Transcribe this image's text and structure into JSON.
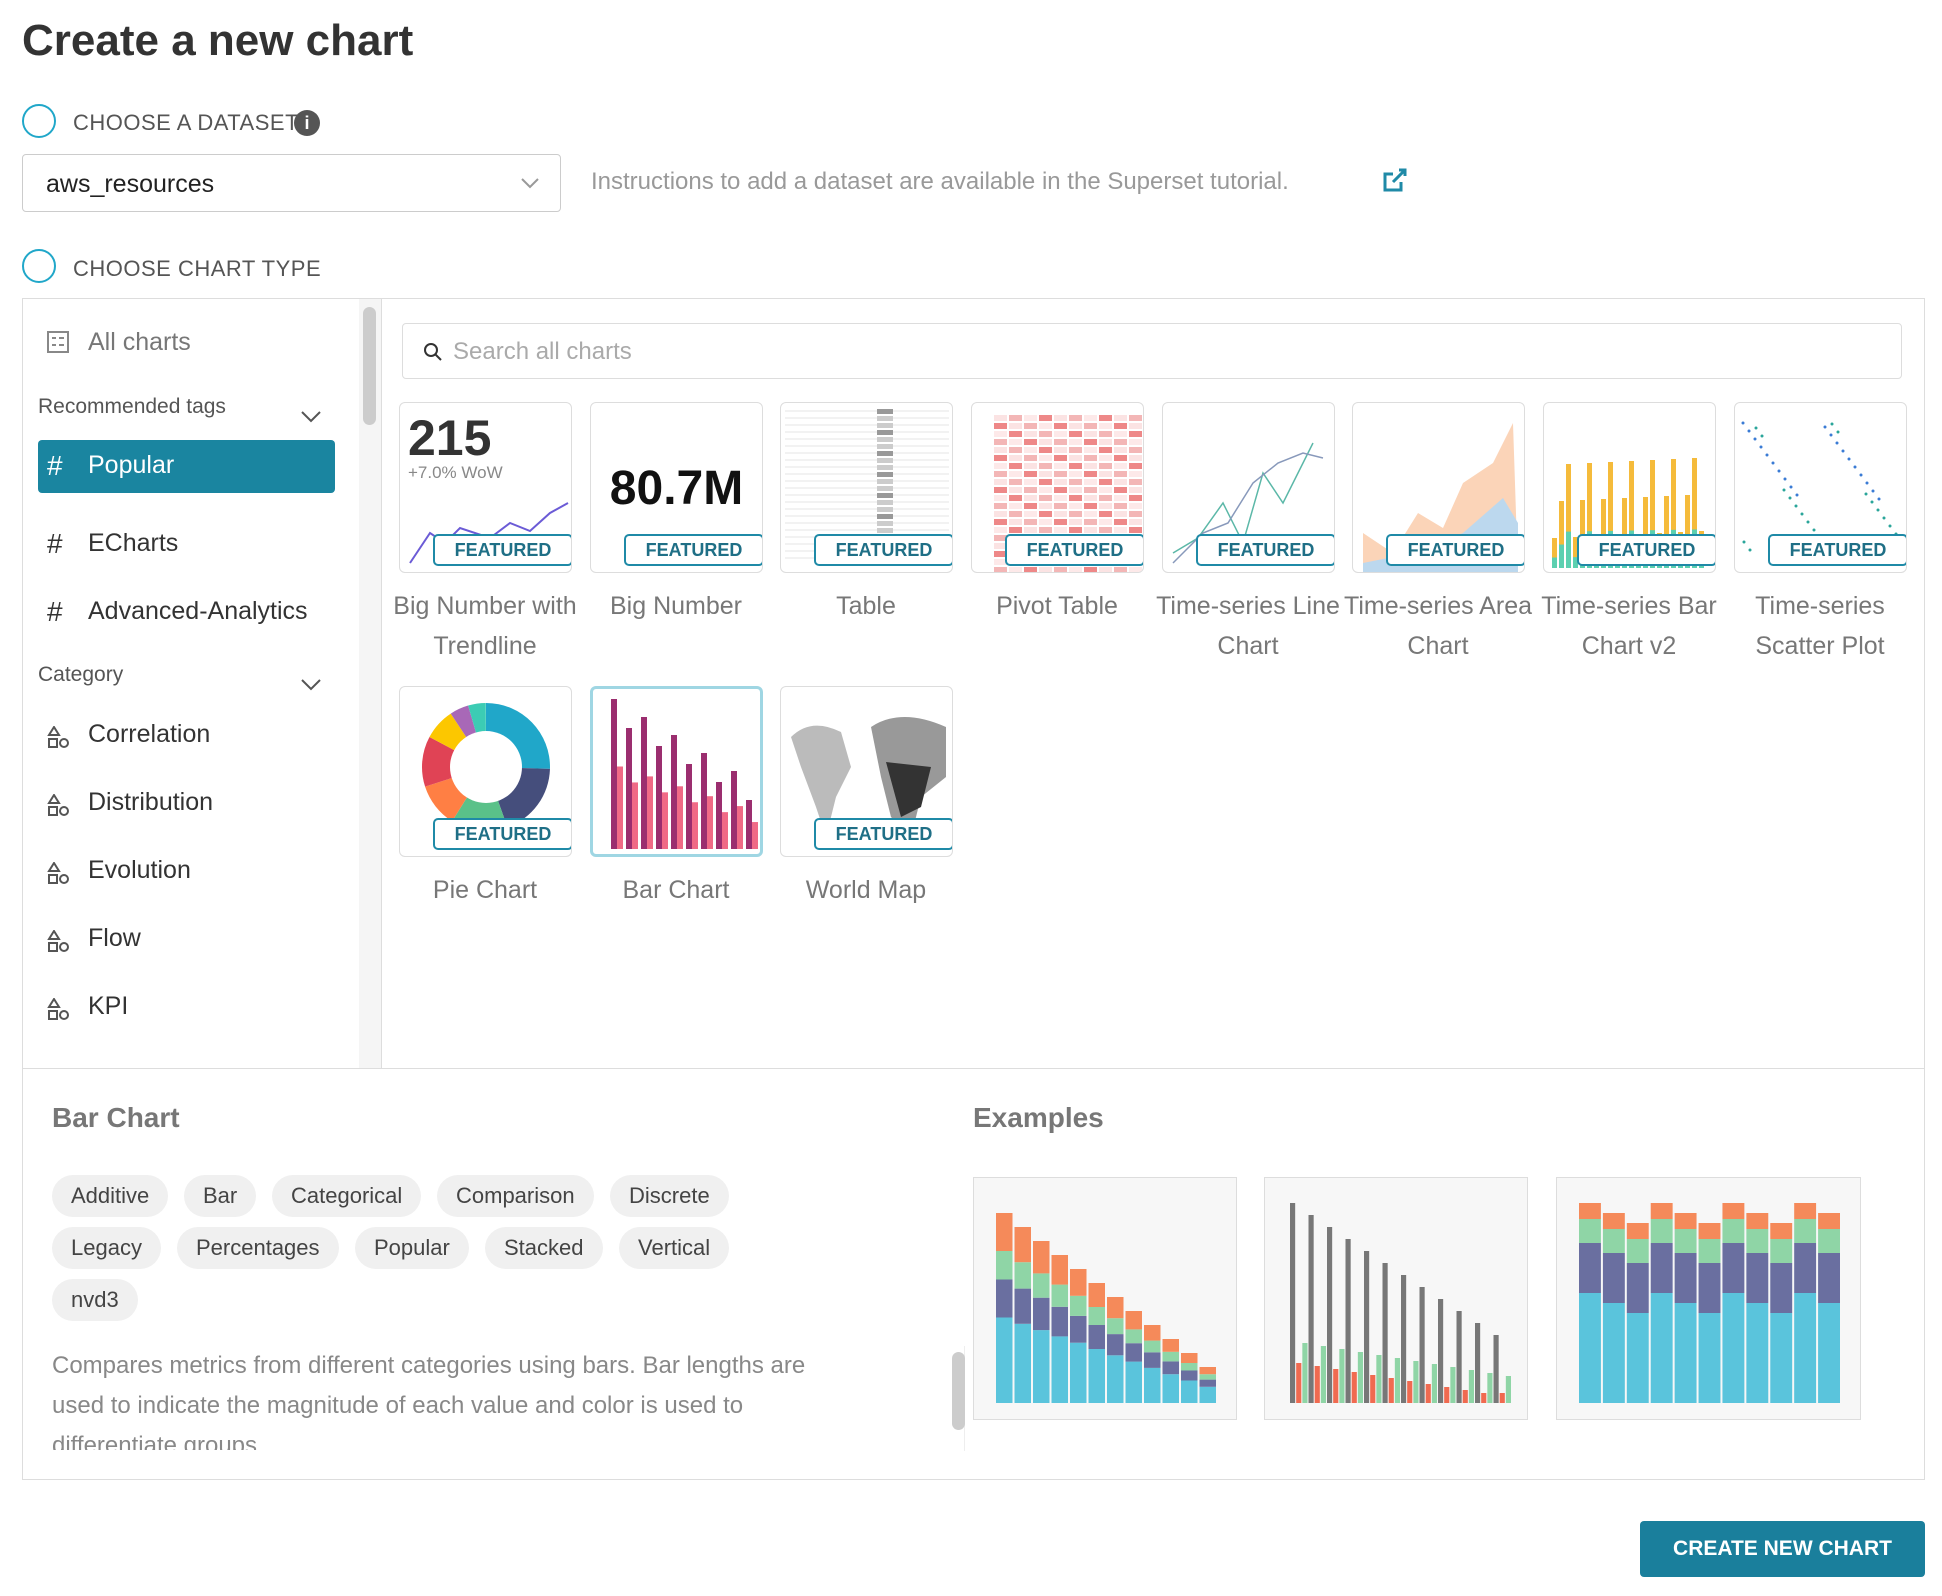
{
  "header": {
    "title": "Create a new chart"
  },
  "steps": [
    {
      "label": "CHOOSE A DATASET"
    },
    {
      "label": "CHOOSE CHART TYPE"
    }
  ],
  "dataset": {
    "selected": "aws_resources",
    "instructions": "Instructions to add a dataset are available in the Superset tutorial."
  },
  "sidebar": {
    "all": "All charts",
    "recommended_heading": "Recommended tags",
    "tags": [
      "Popular",
      "ECharts",
      "Advanced-Analytics"
    ],
    "category_heading": "Category",
    "categories": [
      "Correlation",
      "Distribution",
      "Evolution",
      "Flow",
      "KPI"
    ]
  },
  "search_placeholder": "Search all charts",
  "charts": [
    {
      "name": "Big Number with Trendline",
      "badge": "FEATURED",
      "thumb_texts": [
        "215",
        "+7.0% WoW"
      ]
    },
    {
      "name": "Big Number",
      "badge": "FEATURED",
      "thumb_texts": [
        "80.7M"
      ]
    },
    {
      "name": "Table",
      "badge": "FEATURED"
    },
    {
      "name": "Pivot Table",
      "badge": "FEATURED"
    },
    {
      "name": "Time-series Line Chart",
      "badge": "FEATURED"
    },
    {
      "name": "Time-series Area Chart",
      "badge": "FEATURED"
    },
    {
      "name": "Time-series Bar Chart v2",
      "badge": "FEATURED"
    },
    {
      "name": "Time-series Scatter Plot",
      "badge": "FEATURED"
    },
    {
      "name": "Pie Chart",
      "badge": "FEATURED"
    },
    {
      "name": "Bar Chart"
    },
    {
      "name": "World Map",
      "badge": "FEATURED"
    }
  ],
  "detail": {
    "title": "Bar Chart",
    "tags": [
      "Additive",
      "Bar",
      "Categorical",
      "Comparison",
      "Discrete",
      "Legacy",
      "Percentages",
      "Popular",
      "Stacked",
      "Vertical",
      "nvd3"
    ],
    "description": "Compares metrics from different categories using bars. Bar lengths are used to indicate the magnitude of each value and color is used to differentiate groups."
  },
  "examples_heading": "Examples",
  "button": "CREATE NEW CHART"
}
